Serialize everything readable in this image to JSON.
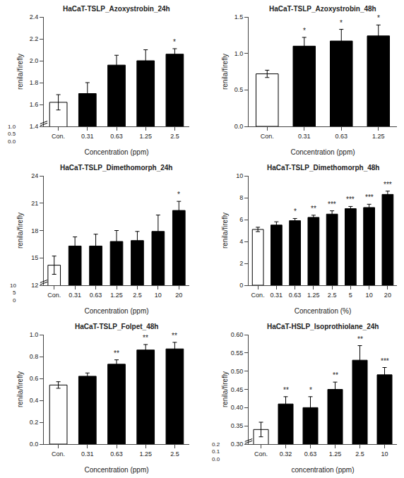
{
  "chart_data": [
    {
      "type": "bar",
      "title": "HaCaT-TSLP_Azoxystrobin_24h",
      "xlabel": "Concentration (ppm)",
      "ylabel": "renila/firefly",
      "categories": [
        "Con.",
        "0.31",
        "0.63",
        "1.25",
        "2.5"
      ],
      "values": [
        1.62,
        1.7,
        1.96,
        2.0,
        2.06
      ],
      "errors": [
        0.07,
        0.1,
        0.09,
        0.1,
        0.05
      ],
      "colors": [
        "white",
        "black",
        "black",
        "black",
        "black"
      ],
      "ylim": [
        1.4,
        2.4
      ],
      "yticks": [
        1.4,
        1.6,
        1.8,
        {
          "value": 2.0,
          "label": "2.0"
        },
        2.2,
        2.4
      ],
      "grid": false,
      "annotations": [
        {
          "category": "2.5",
          "text": "*"
        }
      ],
      "break_labels": [
        "1.0",
        "0.5",
        "0.0"
      ]
    },
    {
      "type": "bar",
      "title": "HaCaT-TSLP_Azoxystrobin_48h",
      "xlabel": "Concentration (ppm)",
      "ylabel": "renila/firefly",
      "categories": [
        "Con.",
        "0.31",
        "0.63",
        "1.25"
      ],
      "values": [
        0.72,
        1.1,
        1.17,
        1.24
      ],
      "errors": [
        0.05,
        0.12,
        0.16,
        0.15
      ],
      "colors": [
        "white",
        "black",
        "black",
        "black"
      ],
      "ylim": [
        0.0,
        1.5
      ],
      "yticks": [
        {
          "value": 0.0,
          "label": "0.0"
        },
        0.5,
        {
          "value": 1.0,
          "label": "1.0"
        },
        1.5
      ],
      "grid": false,
      "annotations": [
        {
          "category": "0.31",
          "text": "*"
        },
        {
          "category": "0.63",
          "text": "*"
        },
        {
          "category": "1.25",
          "text": "*"
        }
      ]
    },
    {
      "type": "bar",
      "title": "HaCaT-TSLP_Dimethomorph_24h",
      "xlabel": "Concentration (ppm)",
      "ylabel": "renila/firefly",
      "categories": [
        "Con.",
        "0.31",
        "0.63",
        "1.25",
        "2.5",
        "10",
        "20"
      ],
      "values": [
        14.2,
        16.3,
        16.3,
        16.8,
        16.9,
        17.9,
        20.2
      ],
      "errors": [
        1.0,
        1.0,
        1.3,
        1.2,
        1.0,
        1.8,
        1.0
      ],
      "colors": [
        "white",
        "black",
        "black",
        "black",
        "black",
        "black",
        "black"
      ],
      "ylim": [
        12.0,
        24.0
      ],
      "yticks": [
        12,
        15,
        18,
        21,
        24
      ],
      "grid": false,
      "annotations": [
        {
          "category": "20",
          "text": "*"
        }
      ],
      "break_labels": [
        "10",
        "5",
        "0"
      ]
    },
    {
      "type": "bar",
      "title": "HaCaT-TSLP_Dimethomorph_48h",
      "xlabel": "Concentration (%)",
      "ylabel": "renila/firefly",
      "categories": [
        "Con.",
        "0.31",
        "0.63",
        "1.25",
        "2.5",
        "5",
        "10",
        "20"
      ],
      "values": [
        5.1,
        5.5,
        5.9,
        6.2,
        6.5,
        7.0,
        7.1,
        8.3
      ],
      "errors": [
        0.2,
        0.3,
        0.2,
        0.2,
        0.3,
        0.2,
        0.3,
        0.3
      ],
      "colors": [
        "white",
        "black",
        "black",
        "black",
        "black",
        "black",
        "black",
        "black"
      ],
      "ylim": [
        0.0,
        10.0
      ],
      "yticks": [
        0,
        2,
        4,
        6,
        8,
        10
      ],
      "grid": false,
      "annotations": [
        {
          "category": "0.63",
          "text": "*"
        },
        {
          "category": "1.25",
          "text": "**"
        },
        {
          "category": "2.5",
          "text": "***"
        },
        {
          "category": "5",
          "text": "***"
        },
        {
          "category": "10",
          "text": "***"
        },
        {
          "category": "20",
          "text": "***"
        }
      ]
    },
    {
      "type": "bar",
      "title": "HaCaT-TSLP_Folpet_48h",
      "xlabel": "Concentration (ppm)",
      "ylabel": "renila/firefly",
      "categories": [
        "Con.",
        "0.31",
        "0.63",
        "1.25",
        "2.5"
      ],
      "values": [
        0.54,
        0.62,
        0.73,
        0.86,
        0.87
      ],
      "errors": [
        0.03,
        0.03,
        0.04,
        0.05,
        0.06
      ],
      "colors": [
        "white",
        "black",
        "black",
        "black",
        "black"
      ],
      "ylim": [
        0.0,
        1.0
      ],
      "yticks": [
        {
          "value": 0.0,
          "label": "0.0"
        },
        0.2,
        0.4,
        0.6,
        0.8,
        {
          "value": 1.0,
          "label": "1.0"
        }
      ],
      "grid": false,
      "annotations": [
        {
          "category": "0.63",
          "text": "**"
        },
        {
          "category": "1.25",
          "text": "**"
        },
        {
          "category": "2.5",
          "text": "**"
        }
      ]
    },
    {
      "type": "bar",
      "title": "HaCaT-HSLP_Isoprothiolane_24h",
      "xlabel": "concentration (ppm)",
      "ylabel": "renila/firefly",
      "categories": [
        "Con.",
        "0.32",
        "0.63",
        "1.25",
        "2.5",
        "10"
      ],
      "values": [
        0.34,
        0.41,
        0.4,
        0.45,
        0.53,
        0.49
      ],
      "errors": [
        0.02,
        0.02,
        0.03,
        0.02,
        0.04,
        0.02
      ],
      "colors": [
        "white",
        "black",
        "black",
        "black",
        "black",
        "black"
      ],
      "ylim": [
        0.3,
        0.6
      ],
      "yticks": [
        {
          "value": 0.3,
          "label": "0.30"
        },
        0.35,
        {
          "value": 0.4,
          "label": "0.40"
        },
        0.45,
        {
          "value": 0.5,
          "label": "0.50"
        },
        0.55,
        {
          "value": 0.6,
          "label": "0.60"
        }
      ],
      "grid": false,
      "annotations": [
        {
          "category": "0.32",
          "text": "**"
        },
        {
          "category": "0.63",
          "text": "*"
        },
        {
          "category": "1.25",
          "text": "**"
        },
        {
          "category": "2.5",
          "text": "**"
        },
        {
          "category": "10",
          "text": "***"
        }
      ],
      "break_labels": [
        "0.2",
        "0.1",
        "0.0"
      ]
    }
  ]
}
